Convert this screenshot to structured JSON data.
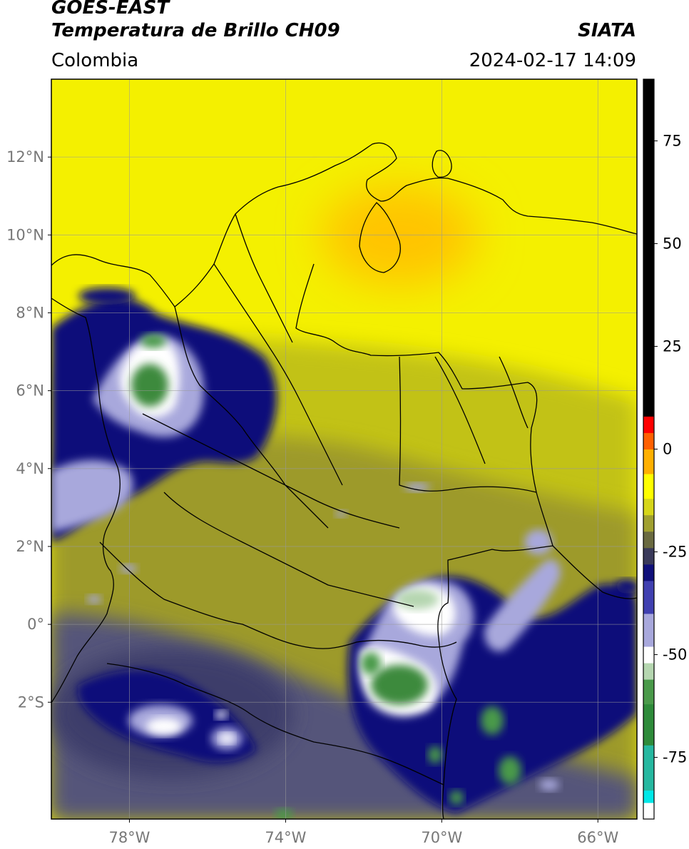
{
  "header": {
    "title": "GOES-EAST",
    "subtitle": "Temperatura de Brillo CH09",
    "organization": "SIATA",
    "region": "Colombia",
    "datetime": "2024-02-17 14:09"
  },
  "map": {
    "lon_range": [
      -80,
      -65
    ],
    "lat_range": [
      -5,
      14
    ],
    "lat_ticks": [
      {
        "value": 12,
        "label": "12°N"
      },
      {
        "value": 10,
        "label": "10°N"
      },
      {
        "value": 8,
        "label": "8°N"
      },
      {
        "value": 6,
        "label": "6°N"
      },
      {
        "value": 4,
        "label": "4°N"
      },
      {
        "value": 2,
        "label": "2°N"
      },
      {
        "value": 0,
        "label": "0°"
      },
      {
        "value": -2,
        "label": "2°S"
      }
    ],
    "lon_ticks": [
      {
        "value": -78,
        "label": "78°W"
      },
      {
        "value": -74,
        "label": "74°W"
      },
      {
        "value": -70,
        "label": "70°W"
      },
      {
        "value": -66,
        "label": "66°W"
      }
    ],
    "gridlines": true
  },
  "colorbar": {
    "range": [
      -90,
      90
    ],
    "ticks": [
      {
        "value": 75,
        "label": "75"
      },
      {
        "value": 50,
        "label": "50"
      },
      {
        "value": 25,
        "label": "25"
      },
      {
        "value": 0,
        "label": "0"
      },
      {
        "value": -25,
        "label": "-25"
      },
      {
        "value": -50,
        "label": "-50"
      },
      {
        "value": -75,
        "label": "-75"
      }
    ],
    "colors": [
      {
        "from": -90,
        "to": -86,
        "color": "#ffffff"
      },
      {
        "from": -86,
        "to": -83,
        "color": "#00e8e8"
      },
      {
        "from": -83,
        "to": -72,
        "color": "#26b8a0"
      },
      {
        "from": -72,
        "to": -62,
        "color": "#2e8b3a"
      },
      {
        "from": -62,
        "to": -56,
        "color": "#4a9a4a"
      },
      {
        "from": -56,
        "to": -52,
        "color": "#b5d6b0"
      },
      {
        "from": -52,
        "to": -48,
        "color": "#ffffff"
      },
      {
        "from": -48,
        "to": -40,
        "color": "#a8a8dc"
      },
      {
        "from": -40,
        "to": -32,
        "color": "#4040b0"
      },
      {
        "from": -32,
        "to": -28,
        "color": "#10107a"
      },
      {
        "from": -28,
        "to": -24,
        "color": "#3a3a5a"
      },
      {
        "from": -24,
        "to": -20,
        "color": "#6a6a40"
      },
      {
        "from": -20,
        "to": -16,
        "color": "#a0a030"
      },
      {
        "from": -16,
        "to": -12,
        "color": "#d6d61a"
      },
      {
        "from": -12,
        "to": -6,
        "color": "#ffff00"
      },
      {
        "from": -6,
        "to": 0,
        "color": "#ffb000"
      },
      {
        "from": 0,
        "to": 4,
        "color": "#ff6000"
      },
      {
        "from": 4,
        "to": 8,
        "color": "#ff0000"
      },
      {
        "from": 8,
        "to": 90,
        "color": "#000000"
      }
    ]
  }
}
